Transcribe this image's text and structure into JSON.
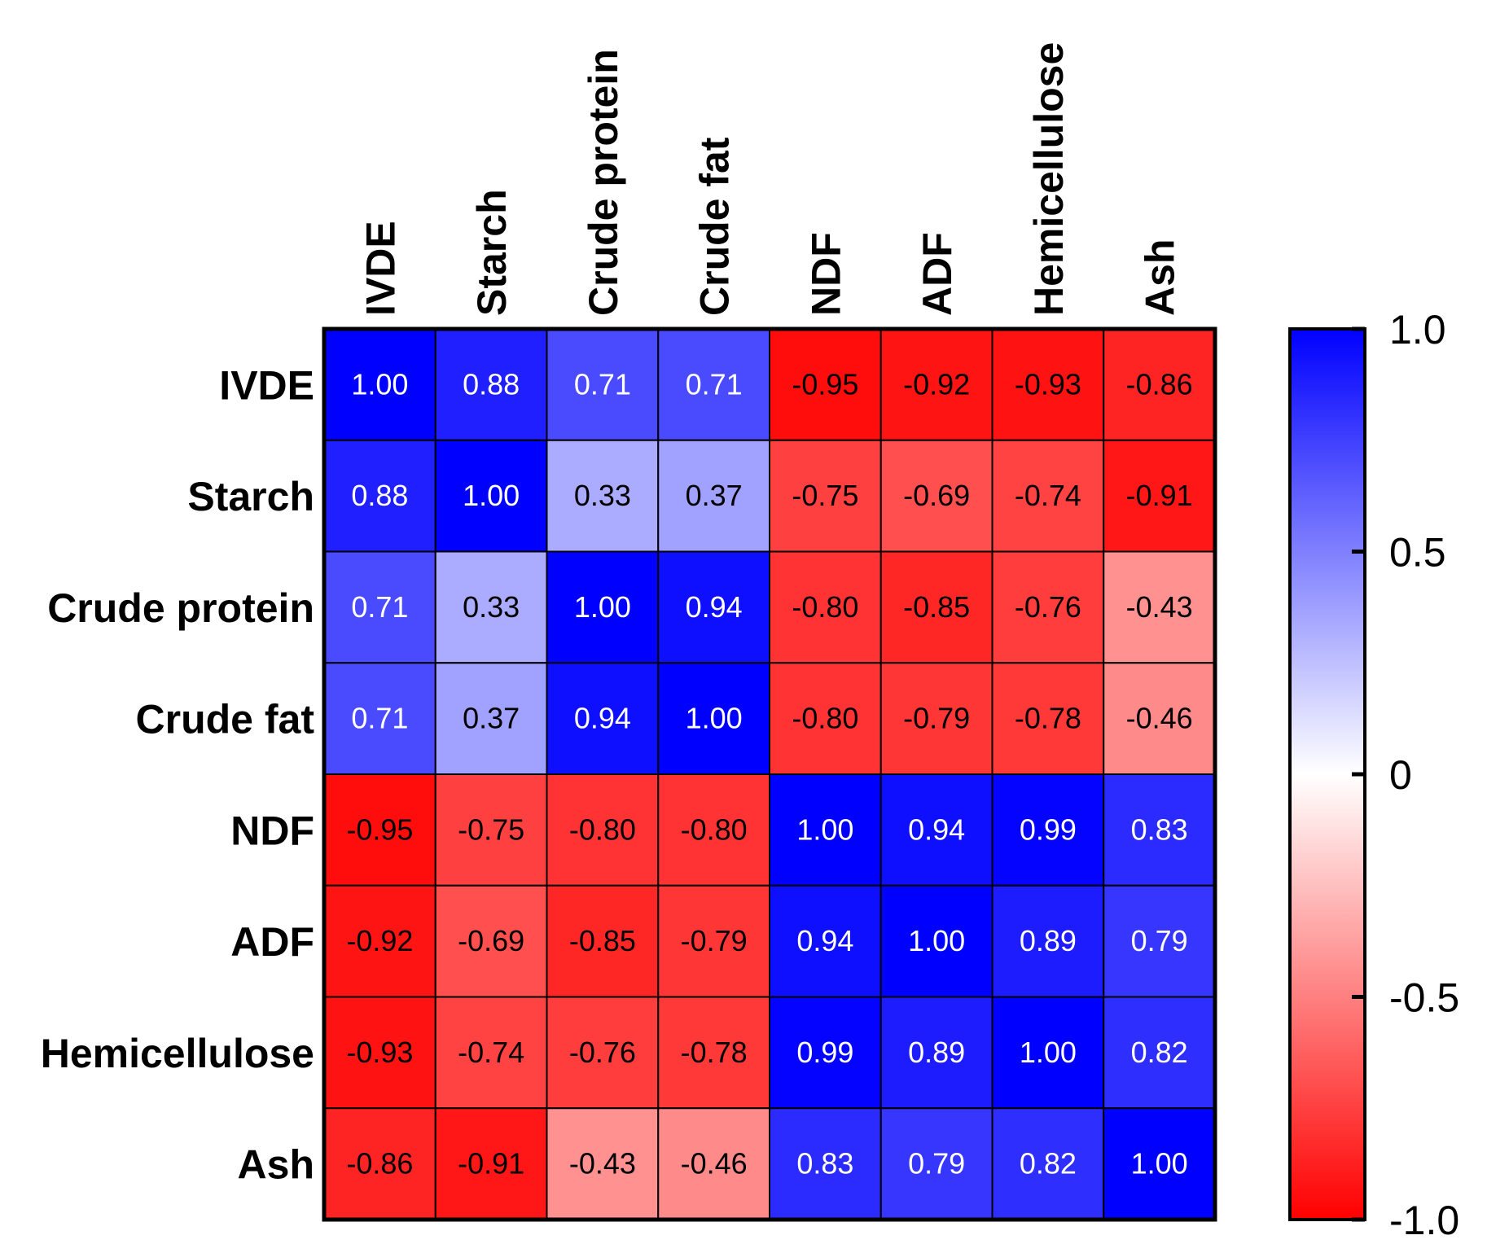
{
  "chart_data": {
    "type": "heatmap",
    "title": "",
    "variables": [
      "IVDE",
      "Starch",
      "Crude protein",
      "Crude fat",
      "NDF",
      "ADF",
      "Hemicellulose",
      "Ash"
    ],
    "matrix": [
      [
        1.0,
        0.88,
        0.71,
        0.71,
        -0.95,
        -0.92,
        -0.93,
        -0.86
      ],
      [
        0.88,
        1.0,
        0.33,
        0.37,
        -0.75,
        -0.69,
        -0.74,
        -0.91
      ],
      [
        0.71,
        0.33,
        1.0,
        0.94,
        -0.8,
        -0.85,
        -0.76,
        -0.43
      ],
      [
        0.71,
        0.37,
        0.94,
        1.0,
        -0.8,
        -0.79,
        -0.78,
        -0.46
      ],
      [
        -0.95,
        -0.75,
        -0.8,
        -0.8,
        1.0,
        0.94,
        0.99,
        0.83
      ],
      [
        -0.92,
        -0.69,
        -0.85,
        -0.79,
        0.94,
        1.0,
        0.89,
        0.79
      ],
      [
        -0.93,
        -0.74,
        -0.76,
        -0.78,
        0.99,
        0.89,
        1.0,
        0.82
      ],
      [
        -0.86,
        -0.91,
        -0.43,
        -0.46,
        0.83,
        0.79,
        0.82,
        1.0
      ]
    ],
    "value_format": "2dp",
    "colorbar": {
      "range": [
        -1.0,
        1.0
      ],
      "ticks": [
        1.0,
        0.5,
        0,
        -0.5,
        -1.0
      ],
      "tick_labels": [
        "1.0",
        "0.5",
        "0",
        "-0.5",
        "-1.0"
      ],
      "colors": {
        "low": "#ff0000",
        "mid": "#ffffff",
        "high": "#0000ff"
      }
    }
  }
}
